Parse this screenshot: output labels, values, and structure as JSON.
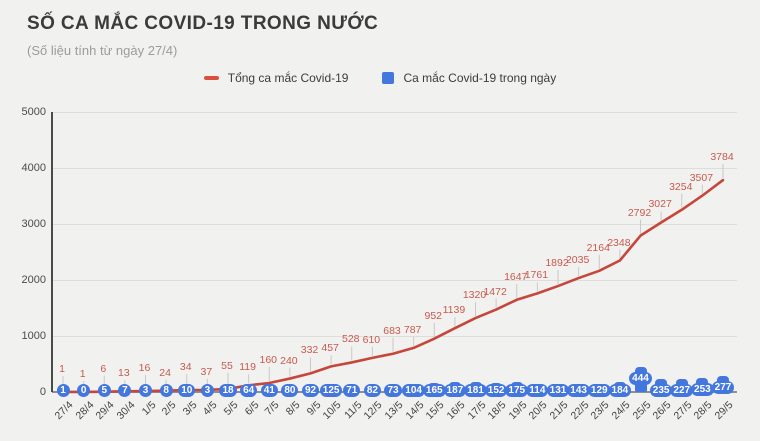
{
  "header": {
    "title": "SỐ CA MẮC COVID-19 TRONG NƯỚC",
    "subtitle": "(Số liệu tính từ ngày 27/4)"
  },
  "legend": [
    {
      "label": "Tổng ca mắc Covid-19",
      "shape": "dash",
      "color": "#d9503f"
    },
    {
      "label": "Ca mắc Covid-19 trong ngày",
      "shape": "square",
      "color": "#4377dd"
    }
  ],
  "colors": {
    "background": "#f1f1f0",
    "line_series": "#c5473b",
    "line_labels": "#c85a4d",
    "bar_series": "#4377dd",
    "bar_label_text": "#ffffff",
    "gridline": "#dedddc",
    "x_axis": "#8f8f8f",
    "y_axis": "#4a4a4a",
    "tick_text": "#4b4b4b"
  },
  "chart_data": {
    "type": "combo",
    "title": "SỐ CA MẮC COVID-19 TRONG NƯỚC",
    "subtitle": "(Số liệu tính từ ngày 27/4)",
    "categories": [
      "27/4",
      "28/4",
      "29/4",
      "30/4",
      "1/5",
      "2/5",
      "3/5",
      "4/5",
      "5/5",
      "6/5",
      "7/5",
      "8/5",
      "9/5",
      "10/5",
      "11/5",
      "12/5",
      "13/5",
      "14/5",
      "15/5",
      "16/5",
      "17/5",
      "18/5",
      "19/5",
      "20/5",
      "21/5",
      "22/5",
      "23/5",
      "24/5",
      "25/5",
      "26/5",
      "27/5",
      "28/5",
      "29/5"
    ],
    "series": [
      {
        "name": "Tổng ca mắc Covid-19",
        "type": "line",
        "color": "#c5473b",
        "values": [
          1,
          1,
          6,
          13,
          16,
          24,
          34,
          37,
          55,
          119,
          160,
          240,
          332,
          457,
          528,
          610,
          683,
          787,
          952,
          1139,
          1320,
          1472,
          1647,
          1761,
          1892,
          2035,
          2164,
          2348,
          2792,
          3027,
          3254,
          3507,
          3784
        ]
      },
      {
        "name": "Ca mắc Covid-19 trong ngày",
        "type": "bar",
        "color": "#4377dd",
        "values": [
          1,
          0,
          5,
          7,
          3,
          8,
          10,
          3,
          18,
          64,
          41,
          80,
          92,
          125,
          71,
          82,
          73,
          104,
          165,
          187,
          181,
          152,
          175,
          114,
          131,
          143,
          129,
          184,
          444,
          235,
          227,
          253,
          277
        ]
      }
    ],
    "xlabel": "",
    "ylabel": "",
    "ylim": [
      0,
      5000
    ],
    "yticks": [
      0,
      1000,
      2000,
      3000,
      4000,
      5000
    ],
    "grid": true,
    "legend_position": "top-center",
    "data_labels": true
  }
}
